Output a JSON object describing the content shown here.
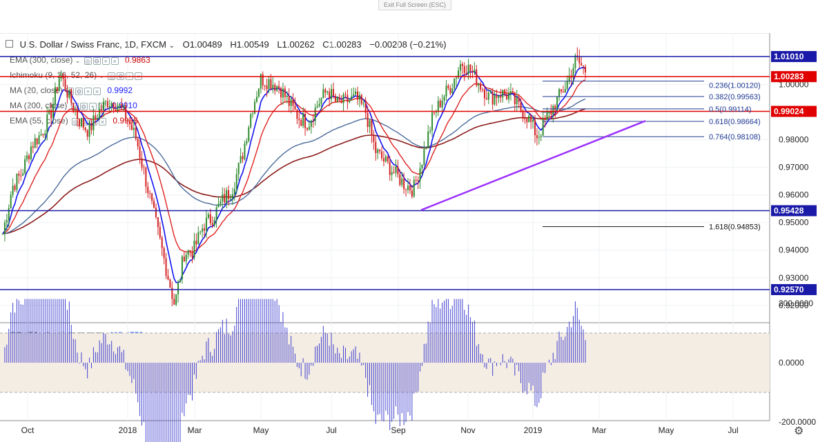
{
  "fullscreen": {
    "exit_label": "Exit Full Screen (ESC)"
  },
  "header": {
    "symbol": "U.S. Dollar / Swiss Franc, 1D, FXCM",
    "ohlc": {
      "open": "O1.00489",
      "high": "H1.00549",
      "low": "L1.00262",
      "close": "C1.00283",
      "change": "−0.00208 (−0.21%)"
    }
  },
  "indicators": [
    {
      "name": "EMA (300, close)",
      "value": "0.9863",
      "color": "#cc0000"
    },
    {
      "name": "Ichimoku (9, 26, 52, 26)",
      "value": "",
      "color": "#2962ff"
    },
    {
      "name": "MA (20, close)",
      "value": "0.9992",
      "color": "#1a1aff"
    },
    {
      "name": "MA (200, close)",
      "value": "0.9910",
      "color": "#1a1aff"
    },
    {
      "name": "EMA (55, close)",
      "value": "0.9955",
      "color": "#cc0000"
    }
  ],
  "cci": {
    "name": "CCI (50, close)",
    "value": "113.4779",
    "color": "#2962ff"
  },
  "chart_data": [
    {
      "type": "candlestick",
      "title": "U.S. Dollar / Swiss Franc, 1D, FXCM",
      "x_ticks": [
        "Oct",
        "2018",
        "Mar",
        "May",
        "Jul",
        "Sep",
        "Nov",
        "2019",
        "Mar",
        "May",
        "Jul"
      ],
      "y_ticks": [
        "1.00000",
        "0.98000",
        "0.97000",
        "0.96000",
        "0.95000",
        "0.94000",
        "0.93000",
        "0.92000"
      ],
      "ylim": [
        0.914,
        1.0115
      ],
      "price_path": [
        [
          0.946,
          0.946
        ],
        [
          0.96,
          0.963
        ],
        [
          0.965,
          0.968
        ],
        [
          0.975,
          0.978
        ],
        [
          0.978,
          0.982
        ],
        [
          0.985,
          0.989
        ],
        [
          1.0,
          1.004
        ],
        [
          0.99,
          0.995
        ],
        [
          0.985,
          0.987
        ],
        [
          0.98,
          0.983
        ],
        [
          0.987,
          0.99
        ],
        [
          0.992,
          0.994
        ],
        [
          0.99,
          0.993
        ],
        [
          0.986,
          0.988
        ],
        [
          0.976,
          0.98
        ],
        [
          0.96,
          0.965
        ],
        [
          0.945,
          0.95
        ],
        [
          0.93,
          0.935
        ],
        [
          0.925,
          0.92
        ],
        [
          0.935,
          0.939
        ],
        [
          0.935,
          0.94
        ],
        [
          0.945,
          0.949
        ],
        [
          0.95,
          0.952
        ],
        [
          0.955,
          0.958
        ],
        [
          0.958,
          0.962
        ],
        [
          0.97,
          0.973
        ],
        [
          0.988,
          0.99
        ],
        [
          1.0,
          1.002
        ],
        [
          1.0,
          1.001
        ],
        [
          0.997,
          0.999
        ],
        [
          0.99,
          0.993
        ],
        [
          0.985,
          0.988
        ],
        [
          0.983,
          0.986
        ],
        [
          0.99,
          0.993
        ],
        [
          0.995,
          0.998
        ],
        [
          0.99,
          0.993
        ],
        [
          0.992,
          0.994
        ],
        [
          0.993,
          0.995
        ],
        [
          0.988,
          0.99
        ],
        [
          0.973,
          0.976
        ],
        [
          0.97,
          0.972
        ],
        [
          0.965,
          0.968
        ],
        [
          0.962,
          0.964
        ],
        [
          0.958,
          0.962
        ],
        [
          0.97,
          0.974
        ],
        [
          0.985,
          0.988
        ],
        [
          0.993,
          0.995
        ],
        [
          0.998,
          1.0
        ],
        [
          1.005,
          1.008
        ],
        [
          1.003,
          1.005
        ],
        [
          0.998,
          1.0
        ],
        [
          0.993,
          0.995
        ],
        [
          0.995,
          0.997
        ],
        [
          0.993,
          0.996
        ],
        [
          0.99,
          0.992
        ],
        [
          0.985,
          0.988
        ],
        [
          0.978,
          0.981
        ],
        [
          0.985,
          0.988
        ],
        [
          0.992,
          0.994
        ],
        [
          0.997,
          1.0
        ],
        [
          1.006,
          1.009
        ],
        [
          1.003,
          1.005
        ]
      ],
      "horizontal_levels": [
        {
          "price": 1.0101,
          "label": "1.01010",
          "color": "#1a1aa8"
        },
        {
          "price": 1.00283,
          "label": "1.00283",
          "color": "#e00000"
        },
        {
          "price": 0.99024,
          "label": "0.99024",
          "color": "#e00000"
        },
        {
          "price": 0.95428,
          "label": "0.95428",
          "color": "#1a1aa8"
        },
        {
          "price": 0.9257,
          "label": "0.92570",
          "color": "#1a1aa8"
        }
      ],
      "fibonacci": [
        {
          "label": "0.236(1.00120)",
          "price": 1.0012
        },
        {
          "label": "0.382(0.99563)",
          "price": 0.99563
        },
        {
          "label": "0.5(0.99114)",
          "price": 0.99114
        },
        {
          "label": "0.618(0.98664)",
          "price": 0.98664
        },
        {
          "label": "0.764(0.98108)",
          "price": 0.98108
        },
        {
          "label": "1.618(0.94853)",
          "price": 0.94853
        }
      ],
      "trendline": {
        "from": {
          "x": "Sep",
          "price": 0.9545
        },
        "to": {
          "x": "Feb",
          "price": 0.9868
        },
        "color": "#9b30ff"
      }
    },
    {
      "type": "bar",
      "title": "CCI (50, close)",
      "y_ticks": [
        "200.0000",
        "0.0000",
        "-200.0000"
      ],
      "ylim": [
        -280,
        240
      ],
      "bands": [
        100,
        -100
      ]
    }
  ],
  "colors": {
    "axis_label_bg_blue": "#1a1aa8",
    "axis_label_bg_red": "#e00000",
    "candle_up": "#2e8b2e",
    "candle_down": "#d42020",
    "fib": "#1f3a93"
  },
  "icons": [
    "eye-icon",
    "settings-icon",
    "plus-icon",
    "close-icon",
    "gear-icon"
  ]
}
